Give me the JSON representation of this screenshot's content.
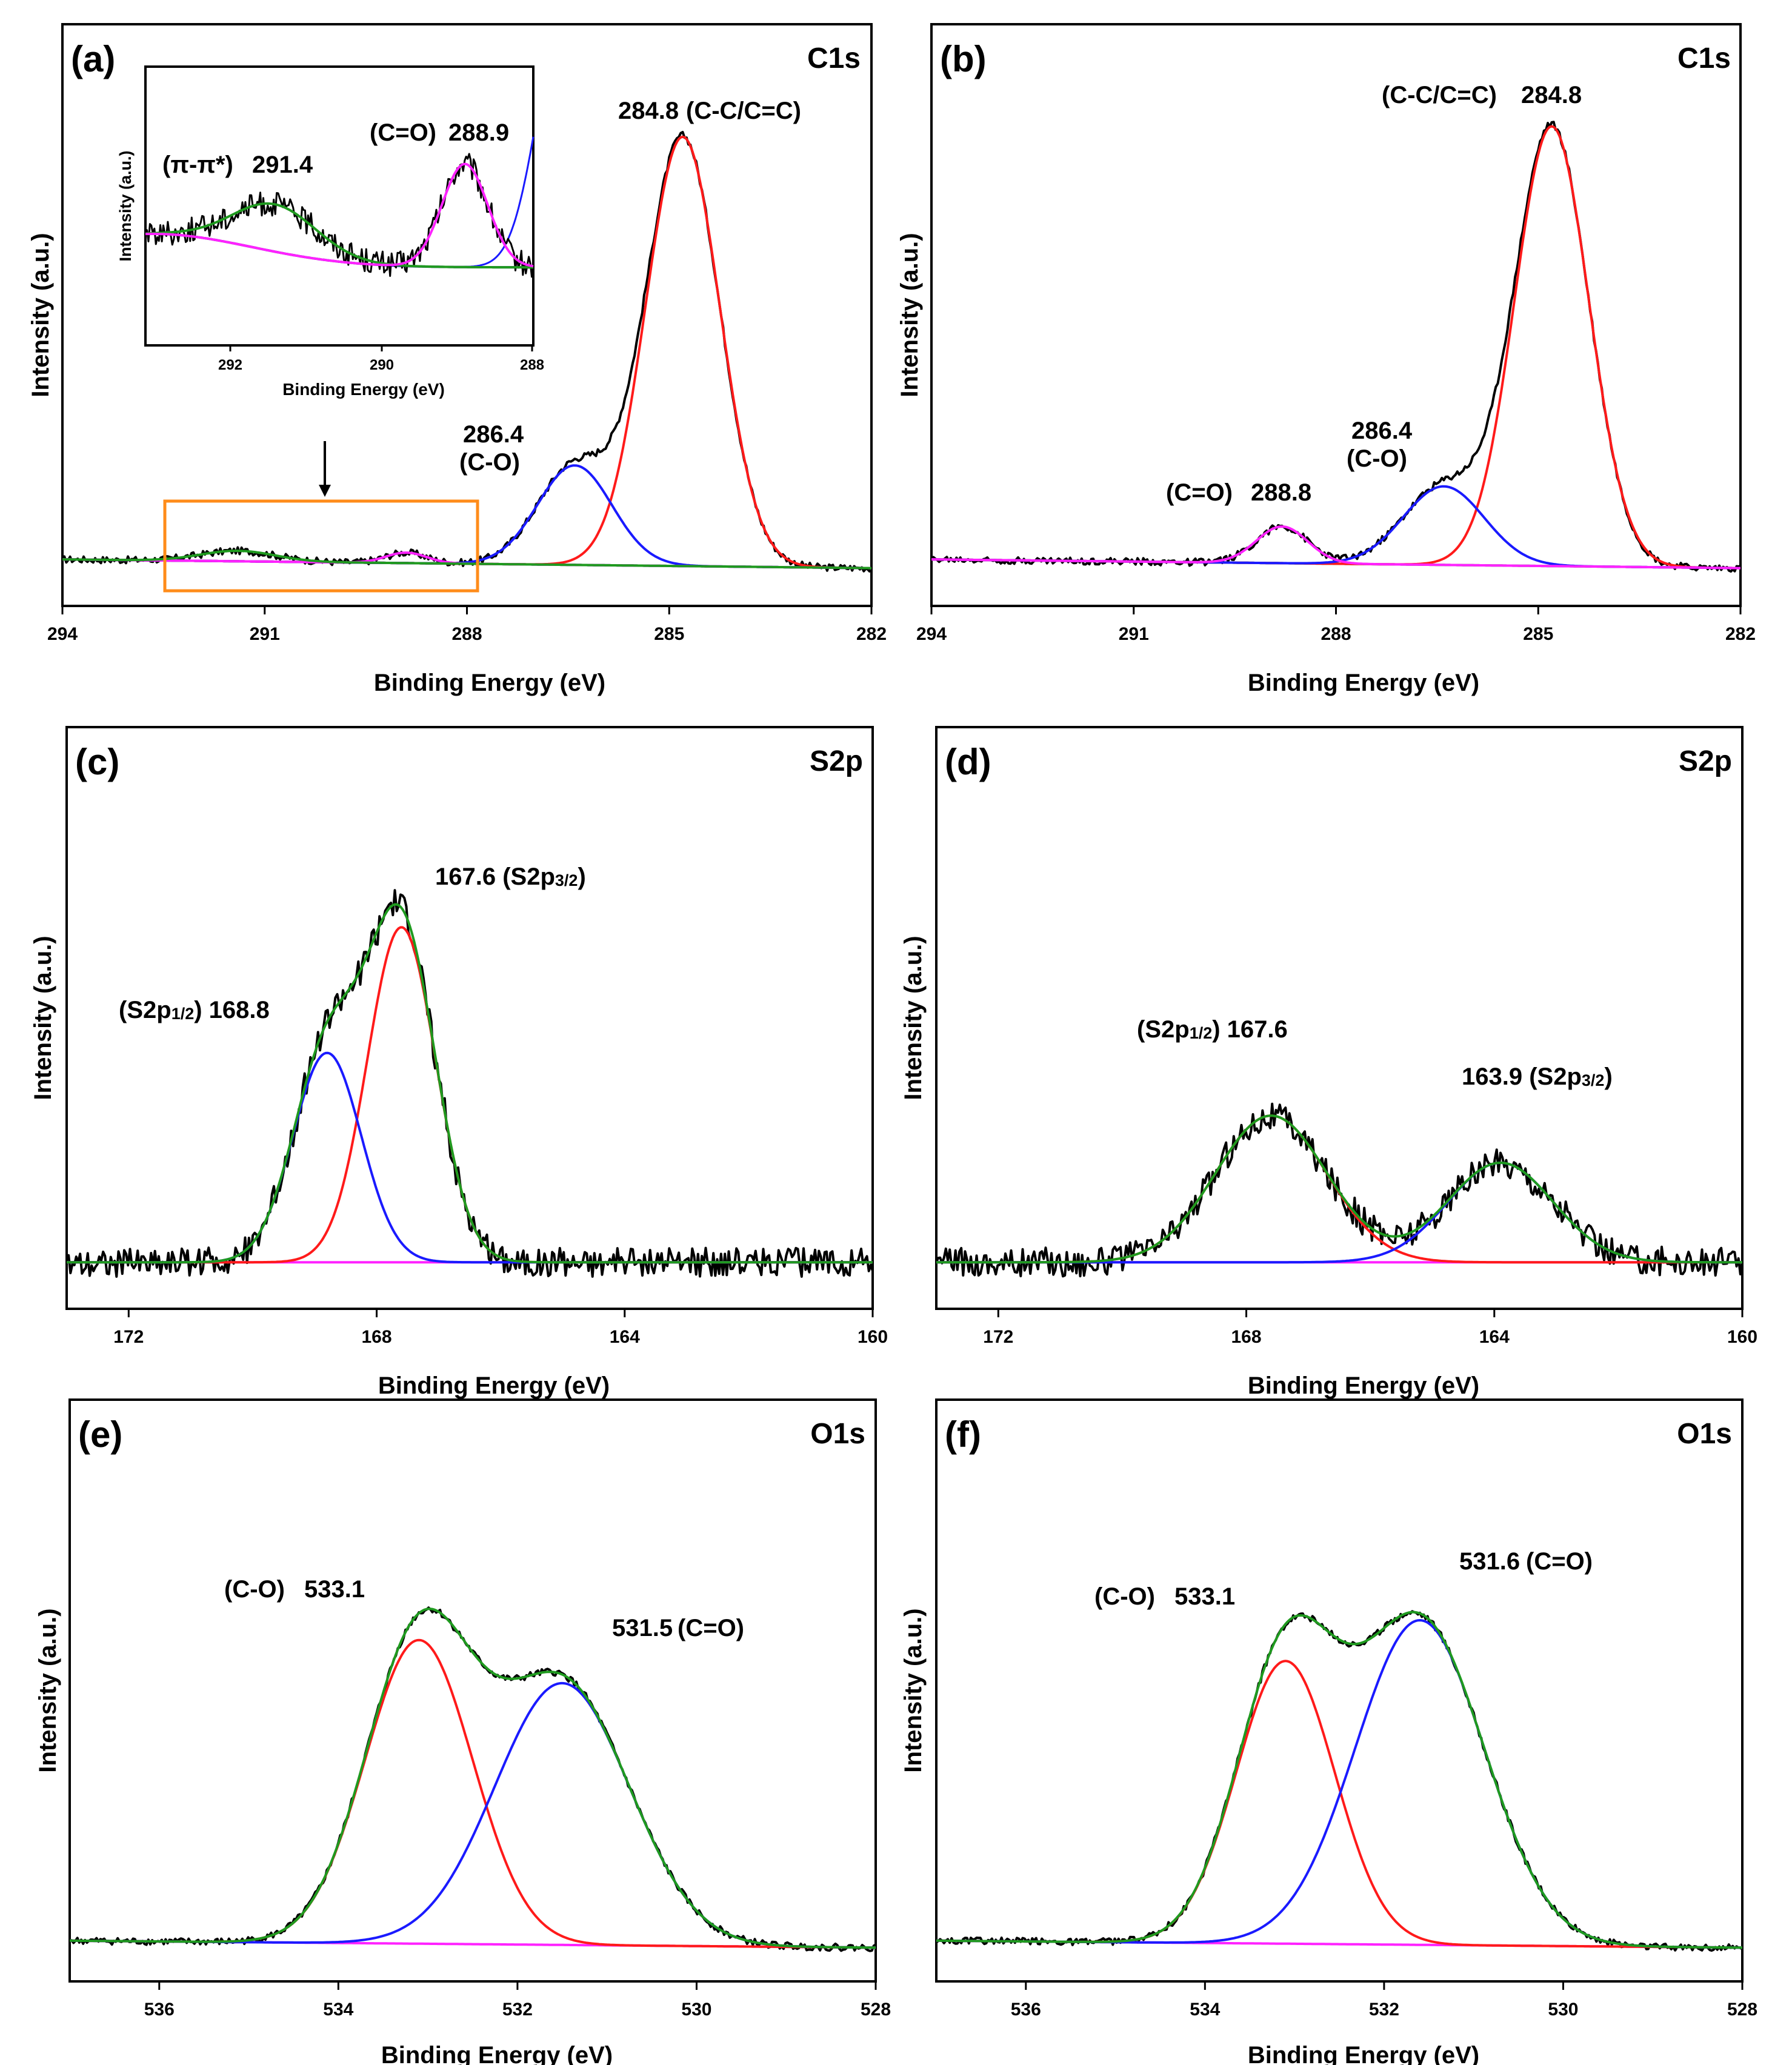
{
  "colors": {
    "raw": "#000000",
    "background_line": "#1a1aa0",
    "red": "#ff1a1a",
    "blue": "#1a1aff",
    "green": "#1f9a1f",
    "magenta": "#ff22ff",
    "navy": "#1a1a8c",
    "orange": "#ff8c1a"
  },
  "common": {
    "xlabel": "Binding Energy (eV)",
    "ylabel": "Intensity (a.u.)"
  },
  "inset": {
    "xlabel": "Binding Energy (eV)",
    "ylabel": "Intensity (a.u.)",
    "ticks": [
      "292",
      "290",
      "288"
    ],
    "labels": {
      "pi_name": "(π-π*)",
      "pi_value": "291.4",
      "co_name": "(C=O)",
      "co_value": "288.9"
    }
  },
  "chart_data": [
    {
      "panel": "(a)",
      "type": "line",
      "title": "C1s",
      "xlabel": "Binding Energy (eV)",
      "ylabel": "Intensity (a.u.)",
      "xlim": [
        294,
        282
      ],
      "xticks": [
        294,
        291,
        288,
        285,
        282
      ],
      "series": [
        {
          "name": "C-C/C=C",
          "color": "red",
          "center": 284.8,
          "height": 0.82
        },
        {
          "name": "C-O",
          "color": "blue",
          "center": 286.4,
          "height": 0.19
        },
        {
          "name": "C=O",
          "color": "magenta",
          "center": 288.9,
          "height": 0.02
        },
        {
          "name": "π-π*",
          "color": "green",
          "center": 291.4,
          "height": 0.02
        }
      ],
      "annotations": [
        {
          "value": "284.8",
          "label": "(C-C/C=C)"
        },
        {
          "value": "286.4",
          "label": "(C-O)"
        }
      ]
    },
    {
      "panel": "(b)",
      "type": "line",
      "title": "C1s",
      "xlabel": "Binding Energy (eV)",
      "ylabel": "Intensity (a.u.)",
      "xlim": [
        294,
        282
      ],
      "xticks": [
        294,
        291,
        288,
        285,
        282
      ],
      "series": [
        {
          "name": "C-C/C=C",
          "color": "red",
          "center": 284.8,
          "height": 0.84
        },
        {
          "name": "C-O",
          "color": "blue",
          "center": 286.4,
          "height": 0.15
        },
        {
          "name": "C=O",
          "color": "magenta",
          "center": 288.8,
          "height": 0.07
        }
      ],
      "annotations": [
        {
          "value": "284.8",
          "label": "(C-C/C=C)"
        },
        {
          "value": "286.4",
          "label": "(C-O)"
        },
        {
          "value": "288.8",
          "label": "(C=O)"
        }
      ]
    },
    {
      "panel": "(c)",
      "type": "line",
      "title": "S2p",
      "xlabel": "Binding Energy (eV)",
      "ylabel": "Intensity (a.u.)",
      "xlim": [
        173,
        160
      ],
      "xticks": [
        172,
        168,
        164,
        160
      ],
      "series": [
        {
          "name": "S2p3/2",
          "color": "red",
          "center": 167.6,
          "height": 0.64
        },
        {
          "name": "S2p1/2",
          "color": "blue",
          "center": 168.8,
          "height": 0.4
        }
      ],
      "annotations": [
        {
          "value": "167.6",
          "label": "(S2p3/2)"
        },
        {
          "value": "168.8",
          "label": "(S2p1/2)"
        }
      ]
    },
    {
      "panel": "(d)",
      "type": "line",
      "title": "S2p",
      "xlabel": "Binding Energy (eV)",
      "ylabel": "Intensity (a.u.)",
      "xlim": [
        173,
        160
      ],
      "xticks": [
        172,
        168,
        164,
        160
      ],
      "series": [
        {
          "name": "S2p1/2",
          "color": "red",
          "center": 167.6,
          "height": 0.28
        },
        {
          "name": "S2p3/2",
          "color": "blue",
          "center": 163.9,
          "height": 0.19
        }
      ],
      "annotations": [
        {
          "value": "167.6",
          "label": "(S2p1/2)"
        },
        {
          "value": "163.9",
          "label": "(S2p3/2)"
        }
      ]
    },
    {
      "panel": "(e)",
      "type": "line",
      "title": "O1s",
      "xlabel": "Binding Energy (eV)",
      "ylabel": "Intensity (a.u.)",
      "xlim": [
        537,
        528
      ],
      "xticks": [
        536,
        534,
        532,
        530,
        528
      ],
      "series": [
        {
          "name": "C-O",
          "color": "red",
          "center": 533.1,
          "height": 0.58
        },
        {
          "name": "C=O",
          "color": "blue",
          "center": 531.5,
          "height": 0.5
        }
      ],
      "annotations": [
        {
          "value": "533.1",
          "label": "(C-O)"
        },
        {
          "value": "531.5",
          "label": "(C=O)"
        }
      ]
    },
    {
      "panel": "(f)",
      "type": "line",
      "title": "O1s",
      "xlabel": "Binding Energy (eV)",
      "ylabel": "Intensity (a.u.)",
      "xlim": [
        537,
        528
      ],
      "xticks": [
        536,
        534,
        532,
        530,
        528
      ],
      "series": [
        {
          "name": "C-O",
          "color": "red",
          "center": 533.1,
          "height": 0.54
        },
        {
          "name": "C=O",
          "color": "blue",
          "center": 531.6,
          "height": 0.62
        }
      ],
      "annotations": [
        {
          "value": "533.1",
          "label": "(C-O)"
        },
        {
          "value": "531.6",
          "label": "(C=O)"
        }
      ]
    }
  ]
}
